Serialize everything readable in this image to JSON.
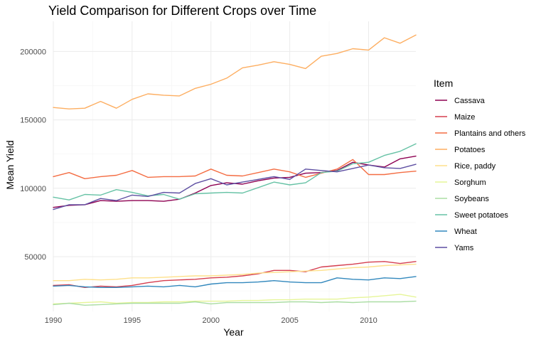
{
  "chart_data": {
    "type": "line",
    "title": "Yield Comparison for Different Crops over Time",
    "xlabel": "Year",
    "ylabel": "Mean Yield",
    "legend_title": "Item",
    "legend_position": "right",
    "grid": true,
    "xlim": [
      1990,
      2013
    ],
    "ylim": [
      10000,
      222000
    ],
    "x_ticks": [
      1990,
      1995,
      2000,
      2005,
      2010
    ],
    "y_ticks": [
      50000,
      100000,
      150000,
      200000
    ],
    "x": [
      1990,
      1991,
      1992,
      1993,
      1994,
      1995,
      1996,
      1997,
      1998,
      1999,
      2000,
      2001,
      2002,
      2003,
      2004,
      2005,
      2006,
      2007,
      2008,
      2009,
      2010,
      2011,
      2012,
      2013
    ],
    "series": [
      {
        "name": "Cassava",
        "color": "#8E0152",
        "values": [
          86000,
          87500,
          88000,
          91000,
          90500,
          91000,
          91000,
          90500,
          92000,
          96500,
          102000,
          104000,
          103000,
          105500,
          107500,
          108000,
          111000,
          111500,
          113000,
          119000,
          117000,
          115500,
          121500,
          123500
        ]
      },
      {
        "name": "Maize",
        "color": "#D53E4F",
        "values": [
          29000,
          29500,
          27500,
          28500,
          28000,
          29000,
          31000,
          32500,
          33000,
          33500,
          34500,
          35000,
          36000,
          37500,
          40000,
          40000,
          39000,
          42500,
          43500,
          44500,
          46000,
          46500,
          45000,
          46500
        ]
      },
      {
        "name": "Plantains and others",
        "color": "#F46D43",
        "values": [
          108500,
          111500,
          107000,
          108500,
          109500,
          113000,
          108000,
          108500,
          108500,
          109000,
          114000,
          109500,
          109000,
          111500,
          114000,
          112000,
          108000,
          111000,
          114000,
          121000,
          110000,
          110000,
          111500,
          112500
        ]
      },
      {
        "name": "Potatoes",
        "color": "#FDAE61",
        "values": [
          159000,
          158000,
          158500,
          163500,
          158500,
          165000,
          169000,
          168000,
          167500,
          173000,
          176000,
          180500,
          188000,
          190000,
          192500,
          190500,
          187500,
          196500,
          198500,
          202000,
          201000,
          210000,
          206000,
          212000
        ]
      },
      {
        "name": "Rice, paddy",
        "color": "#FEE08B",
        "values": [
          32500,
          32500,
          33500,
          33000,
          33500,
          34500,
          34500,
          35000,
          35500,
          36000,
          36000,
          36500,
          37000,
          38000,
          38500,
          39000,
          39500,
          40000,
          41000,
          42000,
          42500,
          43500,
          44000,
          44500
        ]
      },
      {
        "name": "Sorghum",
        "color": "#E6F598",
        "values": [
          15500,
          16000,
          16500,
          17000,
          16000,
          16500,
          16500,
          17000,
          17000,
          17500,
          17500,
          17500,
          18000,
          18000,
          18500,
          18500,
          19000,
          19000,
          19000,
          20000,
          20500,
          21500,
          22500,
          20500
        ]
      },
      {
        "name": "Soybeans",
        "color": "#ABDDA4",
        "values": [
          15000,
          16000,
          14500,
          15000,
          15500,
          16000,
          16000,
          16000,
          16000,
          17000,
          15500,
          16500,
          16500,
          16500,
          16500,
          17000,
          17000,
          16500,
          17000,
          16500,
          17000,
          17000,
          17000,
          17500
        ]
      },
      {
        "name": "Sweet potatoes",
        "color": "#66C2A5",
        "values": [
          93500,
          91500,
          95500,
          95000,
          99000,
          97000,
          94500,
          95500,
          92000,
          96000,
          96500,
          97000,
          96500,
          100500,
          104500,
          102500,
          104000,
          111500,
          112500,
          118000,
          119000,
          124000,
          127000,
          132500
        ]
      },
      {
        "name": "Wheat",
        "color": "#3288BD",
        "values": [
          28500,
          29000,
          28000,
          27500,
          27500,
          28000,
          28500,
          28000,
          29000,
          28000,
          30000,
          31000,
          31000,
          31500,
          32500,
          31500,
          31000,
          31000,
          34500,
          33500,
          33000,
          34500,
          34000,
          35500
        ]
      },
      {
        "name": "Yams",
        "color": "#5E4FA2",
        "values": [
          84500,
          88000,
          88000,
          92500,
          91000,
          95000,
          94000,
          97000,
          96500,
          103500,
          107000,
          102500,
          104500,
          106500,
          108500,
          106500,
          114000,
          113000,
          112000,
          114500,
          117000,
          115000,
          114500,
          117500
        ]
      }
    ]
  }
}
